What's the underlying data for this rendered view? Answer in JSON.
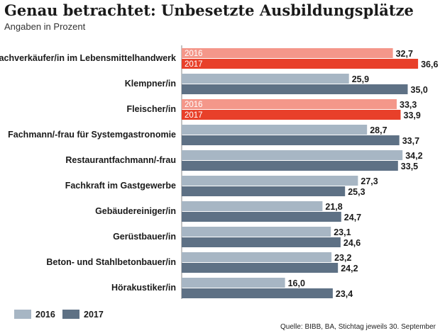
{
  "chart_data": {
    "type": "bar",
    "orientation": "horizontal",
    "title": "Genau betrachtet: Unbesetzte Ausbildungsplätze",
    "subtitle": "Angaben in Prozent",
    "categories": [
      "Fachverkäufer/in im Lebensmittelhandwerk",
      "Klempner/in",
      "Fleischer/in",
      "Fachmann/-frau für Systemgastronomie",
      "Restaurantfachmann/-frau",
      "Fachkraft im Gastgewerbe",
      "Gebäudereiniger/in",
      "Gerüstbauer/in",
      "Beton- und Stahlbetonbauer/in",
      "Hörakustiker/in"
    ],
    "series": [
      {
        "name": "2016",
        "color": "#a7b6c4",
        "values": [
          32.7,
          25.9,
          33.3,
          28.7,
          34.2,
          27.3,
          21.8,
          23.1,
          23.2,
          16.0
        ],
        "labels": [
          "32,7",
          "25,9",
          "33,3",
          "28,7",
          "34,2",
          "27,3",
          "21,8",
          "23,1",
          "23,2",
          "16,0"
        ]
      },
      {
        "name": "2017",
        "color": "#5e7185",
        "values": [
          36.6,
          35.0,
          33.9,
          33.7,
          33.5,
          25.3,
          24.7,
          24.6,
          24.2,
          23.4
        ],
        "labels": [
          "36,6",
          "35,0",
          "33,9",
          "33,7",
          "33,5",
          "25,3",
          "24,7",
          "24,6",
          "24,2",
          "23,4"
        ]
      }
    ],
    "highlight": {
      "indices": [
        0,
        2
      ],
      "colors": {
        "2016": "#f4978a",
        "2017": "#e8402a"
      },
      "inbar_labels": [
        "2016",
        "2017"
      ]
    },
    "xlim": [
      0,
      40
    ],
    "legend": {
      "position": "bottom-left",
      "items": [
        "2016",
        "2017"
      ]
    },
    "source": "Quelle: BIBB, BA, Stichtag jeweils 30. September"
  }
}
